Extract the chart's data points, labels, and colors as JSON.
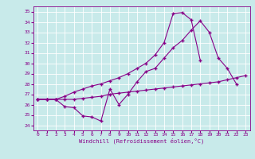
{
  "title": "",
  "xlabel": "Windchill (Refroidissement éolien,°C)",
  "bg_color": "#c8eaea",
  "line_color": "#880088",
  "grid_color": "#ffffff",
  "xlim": [
    -0.5,
    23.5
  ],
  "ylim": [
    23.5,
    35.5
  ],
  "xticks": [
    0,
    1,
    2,
    3,
    4,
    5,
    6,
    7,
    8,
    9,
    10,
    11,
    12,
    13,
    14,
    15,
    16,
    17,
    18,
    19,
    20,
    21,
    22,
    23
  ],
  "yticks": [
    24,
    25,
    26,
    27,
    28,
    29,
    30,
    31,
    32,
    33,
    34,
    35
  ],
  "line1_x": [
    0,
    1,
    2,
    3,
    4,
    5,
    6,
    7,
    8,
    9,
    10,
    11,
    12,
    13,
    14,
    15,
    16,
    17,
    18,
    19,
    20,
    21,
    22,
    23
  ],
  "line1_y": [
    26.5,
    26.5,
    26.5,
    26.5,
    26.5,
    26.6,
    26.7,
    26.8,
    27.0,
    27.1,
    27.2,
    27.3,
    27.4,
    27.5,
    27.6,
    27.7,
    27.8,
    27.9,
    28.0,
    28.1,
    28.2,
    28.4,
    28.6,
    28.8
  ],
  "line2_x": [
    0,
    1,
    2,
    3,
    4,
    5,
    6,
    7,
    8,
    9,
    10,
    11,
    12,
    13,
    14,
    15,
    16,
    17,
    18,
    19,
    20,
    21,
    22
  ],
  "line2_y": [
    26.5,
    26.5,
    26.5,
    25.8,
    25.7,
    24.9,
    24.8,
    24.4,
    27.5,
    26.0,
    27.0,
    28.2,
    29.2,
    29.5,
    30.5,
    31.5,
    32.2,
    33.2,
    34.1,
    33.0,
    30.5,
    29.5,
    28.0
  ],
  "line3_x": [
    0,
    1,
    2,
    3,
    4,
    5,
    6,
    7,
    8,
    9,
    10,
    11,
    12,
    13,
    14,
    15,
    16,
    17,
    18,
    19,
    20,
    21,
    22,
    23
  ],
  "line3_y": [
    26.5,
    26.5,
    26.5,
    26.8,
    27.2,
    27.5,
    27.8,
    28.0,
    28.3,
    28.6,
    29.0,
    29.5,
    30.0,
    30.8,
    32.0,
    34.8,
    34.9,
    34.2,
    30.3,
    null,
    null,
    null,
    null,
    null
  ],
  "markersize": 2.5,
  "linewidth": 0.8
}
